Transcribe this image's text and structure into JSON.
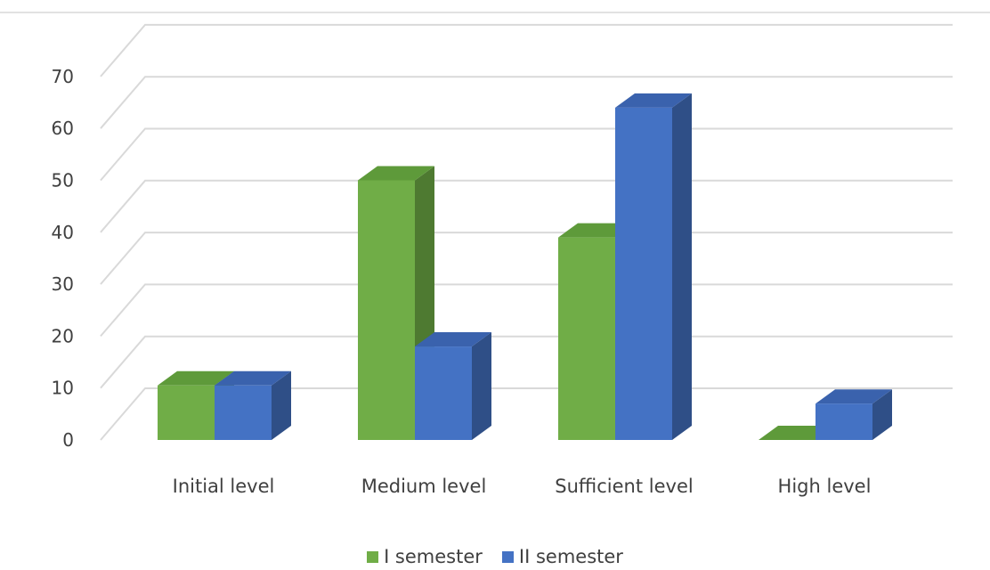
{
  "chart_data": {
    "type": "bar",
    "style": "3d-clustered-column",
    "categories": [
      "Initial level",
      "Medium level",
      "Sufficient level",
      "High level"
    ],
    "series": [
      {
        "name": "I semester",
        "values": [
          10.5,
          50,
          39,
          0
        ],
        "color": "#70ad47",
        "side_color": "#4e7a31",
        "top_color": "#5e9a3a"
      },
      {
        "name": "II semester",
        "values": [
          10.5,
          18,
          64,
          7
        ],
        "color": "#4472c4",
        "side_color": "#2f4f87",
        "top_color": "#3a62ad"
      }
    ],
    "y_ticks": [
      0,
      10,
      20,
      30,
      40,
      50,
      60,
      70
    ],
    "ylim": [
      0,
      72
    ],
    "grid": true,
    "legend_position": "bottom",
    "title": "",
    "xlabel": "",
    "ylabel": ""
  }
}
